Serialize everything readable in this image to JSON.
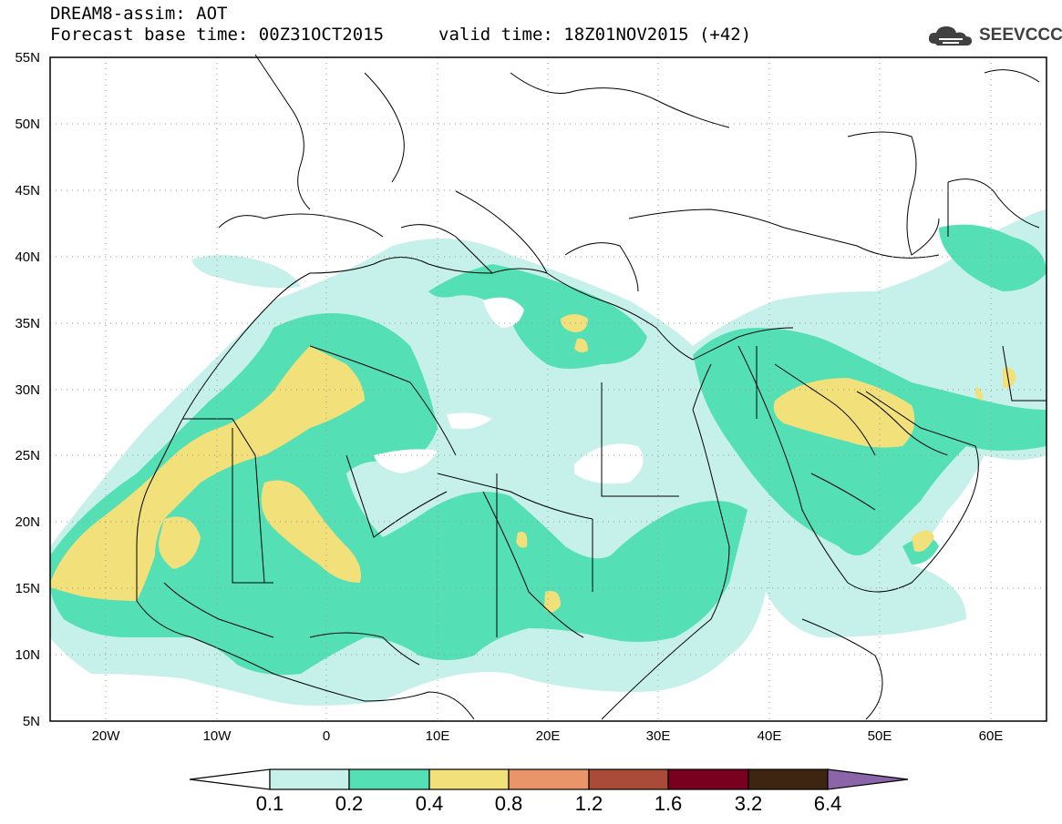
{
  "header": {
    "title": "DREAM8-assim: AOT",
    "base_time": "Forecast base time: 00Z31OCT2015",
    "valid_time": "valid time: 18Z01NOV2015 (+42)"
  },
  "logo": {
    "text": "SEEVCCC",
    "icon": "cloud-logo-icon"
  },
  "map": {
    "lat_labels": [
      "55N",
      "50N",
      "45N",
      "40N",
      "35N",
      "30N",
      "25N",
      "20N",
      "15N",
      "10N",
      "5N"
    ],
    "lon_labels": [
      "20W",
      "10W",
      "0",
      "10E",
      "20E",
      "30E",
      "40E",
      "50E",
      "60E"
    ],
    "extent": {
      "lon_min": -25,
      "lon_max": 65,
      "lat_min": 5,
      "lat_max": 55
    }
  },
  "legend": {
    "levels": [
      "0.1",
      "0.2",
      "0.4",
      "0.8",
      "1.2",
      "1.6",
      "3.2",
      "6.4"
    ],
    "colors": [
      "#ffffff",
      "#c6f0ea",
      "#54e0b4",
      "#f2e07a",
      "#ea946a",
      "#aa4b3a",
      "#7a0020",
      "#3e2512",
      "#8c64a8"
    ]
  }
}
